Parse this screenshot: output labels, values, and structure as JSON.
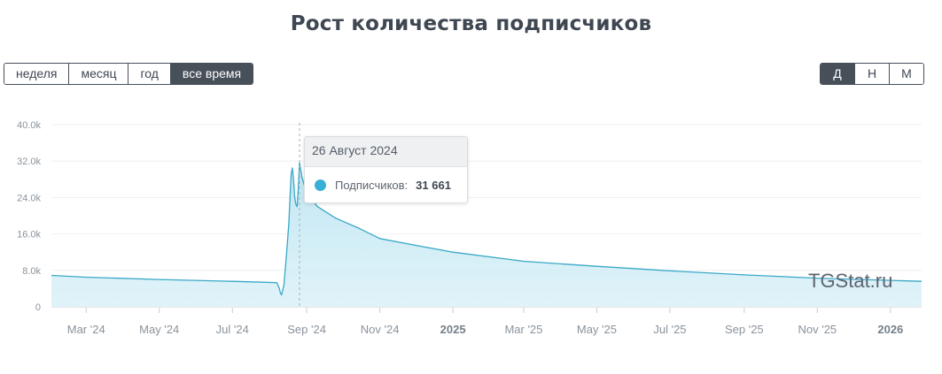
{
  "title": "Рост количества подписчиков",
  "period_buttons": [
    {
      "label": "неделя",
      "active": false
    },
    {
      "label": "месяц",
      "active": false
    },
    {
      "label": "год",
      "active": false
    },
    {
      "label": "все время",
      "active": true
    }
  ],
  "granularity_buttons": [
    {
      "label": "Д",
      "active": true
    },
    {
      "label": "Н",
      "active": false
    },
    {
      "label": "М",
      "active": false
    }
  ],
  "watermark": "TGStat.ru",
  "tooltip": {
    "date": "26 Август 2024",
    "series_label": "Подписчиков:",
    "value": "31 661"
  },
  "colors": {
    "line": "#3aa8c7",
    "fill": "#d6eff7",
    "accent_dark": "#474f59",
    "dot": "#39afd6"
  },
  "chart_data": {
    "type": "area",
    "title": "Рост количества подписчиков",
    "xlabel": "",
    "ylabel": "",
    "ylim": [
      0,
      40000
    ],
    "y_ticks": [
      {
        "value": 0,
        "label": "0"
      },
      {
        "value": 8000,
        "label": "8.0k"
      },
      {
        "value": 16000,
        "label": "16.0k"
      },
      {
        "value": 24000,
        "label": "24.0k"
      },
      {
        "value": 32000,
        "label": "32.0k"
      },
      {
        "value": 40000,
        "label": "40.0k"
      }
    ],
    "xlim": [
      "2024-02-01",
      "2026-01-27"
    ],
    "x_ticks": [
      {
        "date": "2024-03-01",
        "label": "Mar '24",
        "bold": false
      },
      {
        "date": "2024-05-01",
        "label": "May '24",
        "bold": false
      },
      {
        "date": "2024-07-01",
        "label": "Jul '24",
        "bold": false
      },
      {
        "date": "2024-09-01",
        "label": "Sep '24",
        "bold": false
      },
      {
        "date": "2024-11-01",
        "label": "Nov '24",
        "bold": false
      },
      {
        "date": "2025-01-01",
        "label": "2025",
        "bold": true
      },
      {
        "date": "2025-03-01",
        "label": "Mar '25",
        "bold": false
      },
      {
        "date": "2025-05-01",
        "label": "May '25",
        "bold": false
      },
      {
        "date": "2025-07-01",
        "label": "Jul '25",
        "bold": false
      },
      {
        "date": "2025-09-01",
        "label": "Sep '25",
        "bold": false
      },
      {
        "date": "2025-11-01",
        "label": "Nov '25",
        "bold": false
      },
      {
        "date": "2026-01-01",
        "label": "2026",
        "bold": true
      }
    ],
    "grid": true,
    "series": [
      {
        "name": "Подписчиков",
        "points": [
          {
            "date": "2024-02-01",
            "value": 6900
          },
          {
            "date": "2024-03-01",
            "value": 6500
          },
          {
            "date": "2024-05-01",
            "value": 6000
          },
          {
            "date": "2024-07-01",
            "value": 5600
          },
          {
            "date": "2024-08-07",
            "value": 5300
          },
          {
            "date": "2024-08-09",
            "value": 4200
          },
          {
            "date": "2024-08-10",
            "value": 3100
          },
          {
            "date": "2024-08-11",
            "value": 2600
          },
          {
            "date": "2024-08-13",
            "value": 4800
          },
          {
            "date": "2024-08-15",
            "value": 11000
          },
          {
            "date": "2024-08-17",
            "value": 18000
          },
          {
            "date": "2024-08-19",
            "value": 29000
          },
          {
            "date": "2024-08-20",
            "value": 30500
          },
          {
            "date": "2024-08-21",
            "value": 28000
          },
          {
            "date": "2024-08-22",
            "value": 24000
          },
          {
            "date": "2024-08-23",
            "value": 22500
          },
          {
            "date": "2024-08-24",
            "value": 22000
          },
          {
            "date": "2024-08-25",
            "value": 26000
          },
          {
            "date": "2024-08-26",
            "value": 31661
          },
          {
            "date": "2024-08-28",
            "value": 28500
          },
          {
            "date": "2024-09-01",
            "value": 25000
          },
          {
            "date": "2024-09-10",
            "value": 22000
          },
          {
            "date": "2024-09-25",
            "value": 19500
          },
          {
            "date": "2024-10-15",
            "value": 17200
          },
          {
            "date": "2024-11-01",
            "value": 15000
          },
          {
            "date": "2024-12-01",
            "value": 13500
          },
          {
            "date": "2025-01-01",
            "value": 12000
          },
          {
            "date": "2025-03-01",
            "value": 10000
          },
          {
            "date": "2025-05-01",
            "value": 8900
          },
          {
            "date": "2025-07-01",
            "value": 7900
          },
          {
            "date": "2025-09-01",
            "value": 7000
          },
          {
            "date": "2025-11-01",
            "value": 6300
          },
          {
            "date": "2026-01-01",
            "value": 5800
          },
          {
            "date": "2026-01-27",
            "value": 5600
          }
        ]
      }
    ],
    "highlight": {
      "date": "2024-08-26",
      "value": 31661
    }
  }
}
